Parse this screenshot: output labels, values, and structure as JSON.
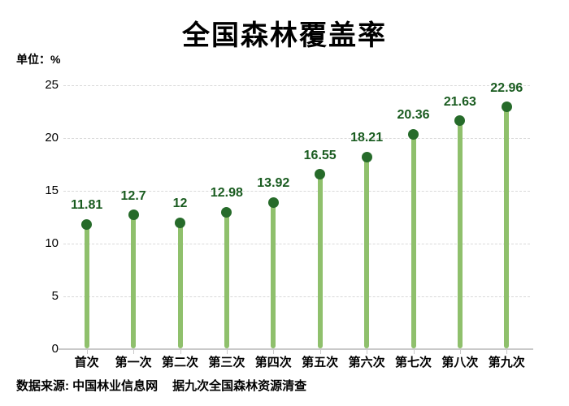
{
  "title": "全国森林覆盖率",
  "unit_label": "单位：%",
  "footer": {
    "source": "数据来源: 中国林业信息网",
    "note": "据九次全国森林资源清查"
  },
  "chart_data": {
    "type": "bar",
    "subtype": "lollipop",
    "title": "全国森林覆盖率",
    "unit": "%",
    "categories": [
      "首次",
      "第一次",
      "第二次",
      "第三次",
      "第四次",
      "第五次",
      "第六次",
      "第七次",
      "第八次",
      "第九次"
    ],
    "values": [
      11.81,
      12.7,
      12,
      12.98,
      13.92,
      16.55,
      18.21,
      20.36,
      21.63,
      22.96
    ],
    "value_labels": [
      "11.81",
      "12.7",
      "12",
      "12.98",
      "13.92",
      "16.55",
      "18.21",
      "20.36",
      "21.63",
      "22.96"
    ],
    "xlabel": "",
    "ylabel": "单位：%",
    "ylim": [
      0,
      25
    ],
    "yticks": [
      0,
      5,
      10,
      15,
      20,
      25
    ],
    "grid": "horizontal-dashed",
    "legend": "none",
    "colors": {
      "stem": "#8fc06c",
      "dot": "#266b2a",
      "value_label": "#1a5c20",
      "gridline": "#d9d9d9",
      "axis": "#c9c9c9",
      "text": "#000000",
      "background": "#ffffff"
    }
  }
}
